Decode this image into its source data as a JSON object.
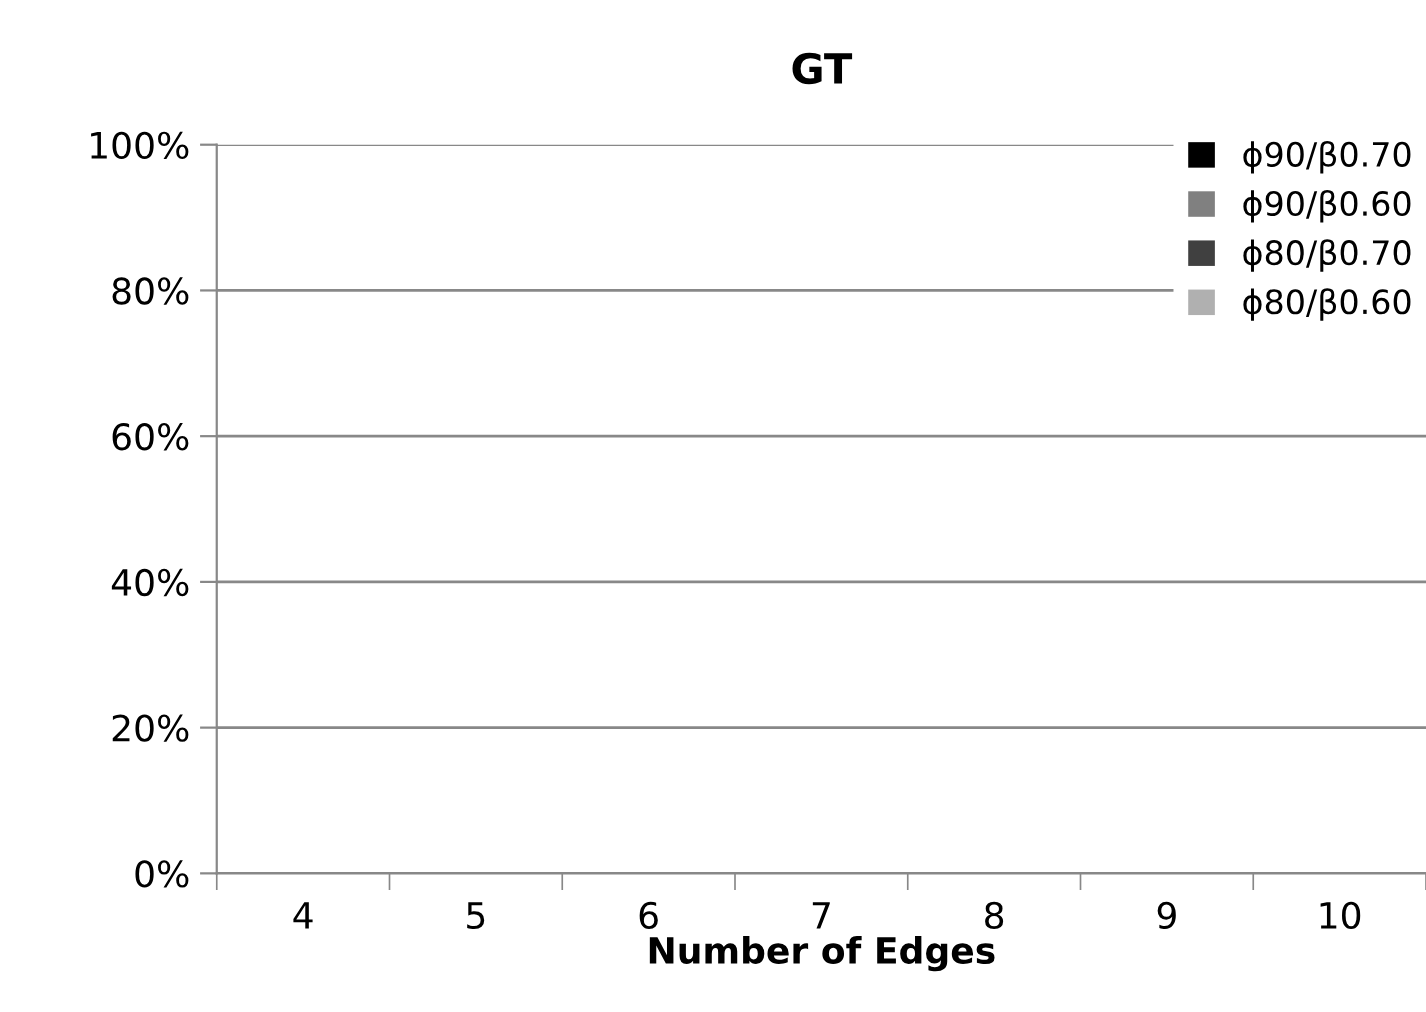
{
  "chart_data": {
    "type": "bar",
    "title": "GT",
    "xlabel": "Number of Edges",
    "categories": [
      "4",
      "5",
      "6",
      "7",
      "8",
      "9",
      "10"
    ],
    "series": [
      {
        "name": "ϕ90/β0.70",
        "color": "#000000",
        "values": [
          null,
          null,
          null,
          null,
          null,
          null,
          null
        ]
      },
      {
        "name": "ϕ90/β0.60",
        "color": "#808080",
        "values": [
          null,
          null,
          null,
          null,
          null,
          null,
          null
        ]
      },
      {
        "name": "ϕ80/β0.70",
        "color": "#404040",
        "values": [
          null,
          null,
          null,
          null,
          null,
          null,
          null
        ]
      },
      {
        "name": "ϕ80/β0.60",
        "color": "#b0b0b0",
        "values": [
          null,
          null,
          null,
          null,
          null,
          null,
          null
        ]
      }
    ],
    "ylim": [
      0,
      1
    ],
    "yticks": [
      {
        "value": 0,
        "label": "0%"
      },
      {
        "value": 0.2,
        "label": "20%"
      },
      {
        "value": 0.4,
        "label": "40%"
      },
      {
        "value": 0.6,
        "label": "60%"
      },
      {
        "value": 0.8,
        "label": "80%"
      },
      {
        "value": 1,
        "label": "100%"
      }
    ],
    "grid": "y",
    "legend": "top right"
  }
}
